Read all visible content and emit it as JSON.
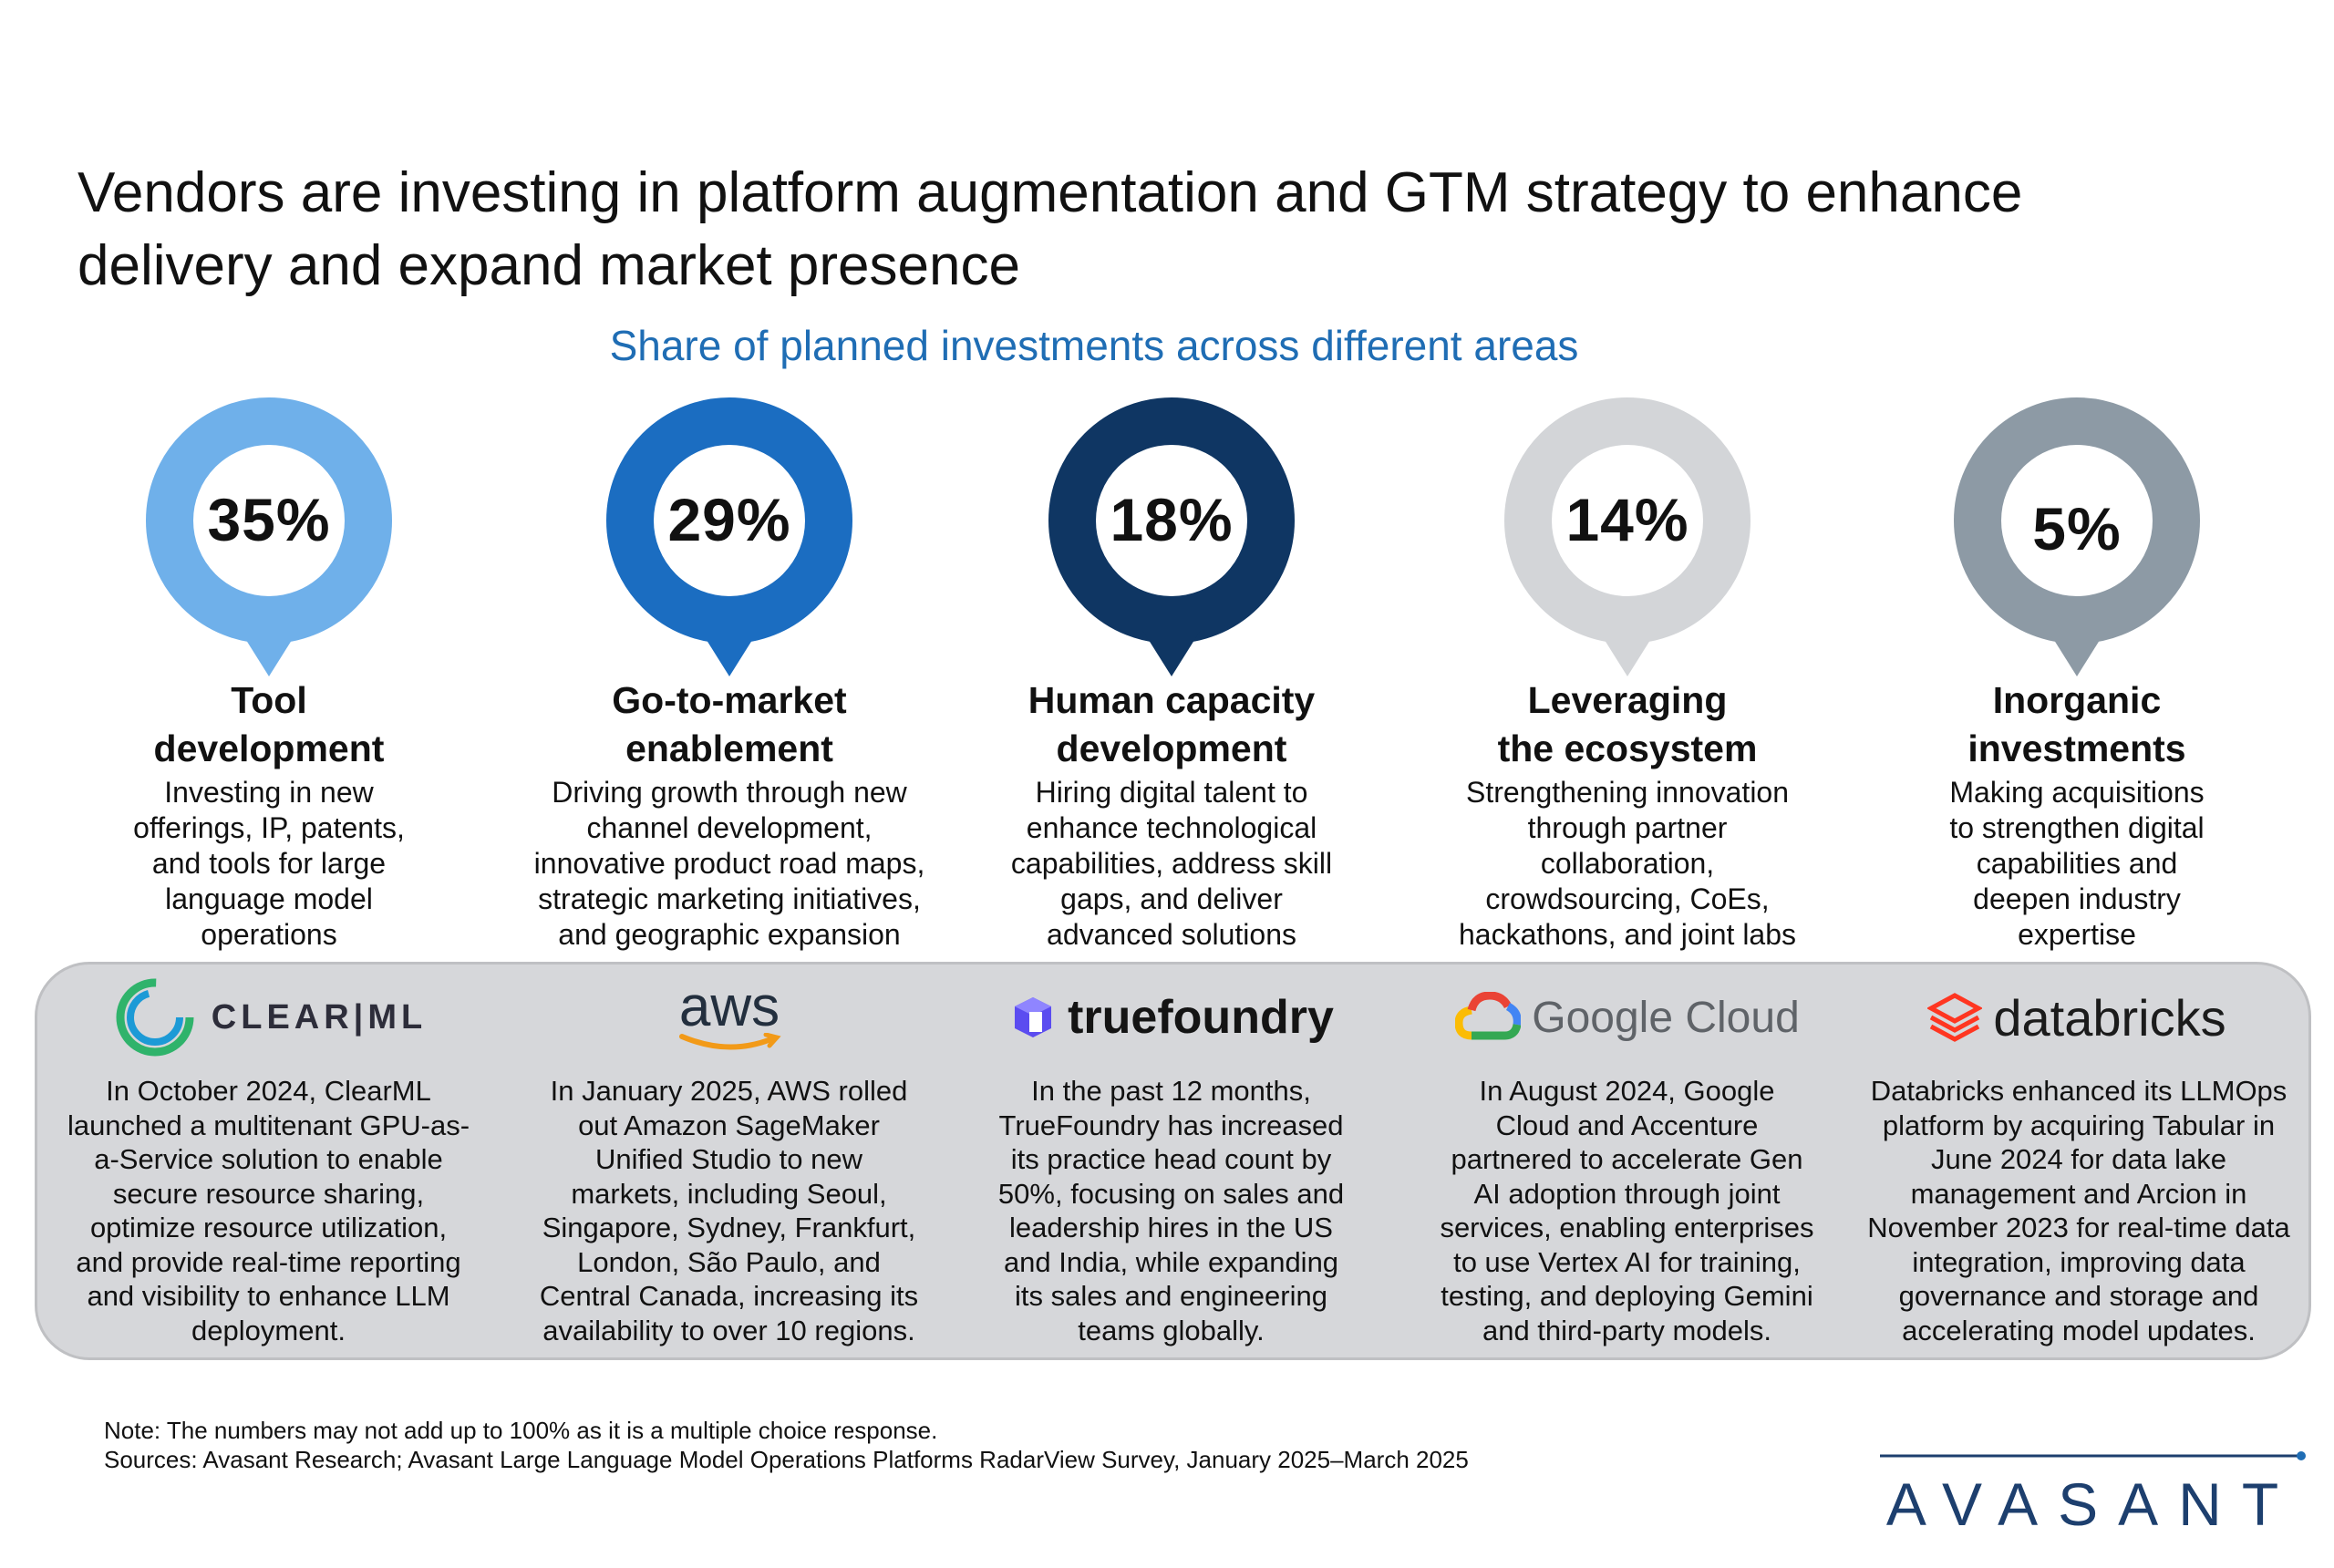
{
  "title_line1": "Vendors are investing in platform augmentation and GTM strategy to enhance",
  "title_line2": "delivery and expand market presence",
  "subtitle": "Share of planned investments across different areas",
  "areas": [
    {
      "percent": "35%",
      "color": "#6fb0ea",
      "heading_line1": "Tool",
      "heading_line2": "development",
      "desc": [
        "Investing in new",
        "offerings, IP, patents,",
        "and tools for large",
        "language model",
        "operations"
      ]
    },
    {
      "percent": "29%",
      "color": "#1b6dc1",
      "heading_line1": "Go-to-market",
      "heading_line2": "enablement",
      "desc": [
        "Driving growth through new",
        "channel development,",
        "innovative product road maps,",
        "strategic marketing initiatives,",
        "and geographic expansion"
      ]
    },
    {
      "percent": "18%",
      "color": "#0f3663",
      "heading_line1": "Human capacity",
      "heading_line2": "development",
      "desc": [
        "Hiring digital talent to",
        "enhance technological",
        "capabilities, address skill",
        "gaps, and deliver",
        "advanced solutions"
      ]
    },
    {
      "percent": "14%",
      "color": "#d3d5d8",
      "heading_line1": "Leveraging",
      "heading_line2": "the ecosystem",
      "desc": [
        "Strengthening innovation",
        "through partner",
        "collaboration,",
        "crowdsourcing, CoEs,",
        "hackathons, and joint labs"
      ]
    },
    {
      "percent": "5%",
      "color": "#8d9aa5",
      "heading_line1": "Inorganic",
      "heading_line2": "investments",
      "desc": [
        "Making acquisitions",
        "to strengthen digital",
        "capabilities and",
        "deepen industry",
        "expertise"
      ]
    }
  ],
  "examples": [
    {
      "logo_text": "CLEAR|ML",
      "text": [
        "In October 2024, ClearML",
        "launched a multitenant GPU-as-",
        "a-Service solution to enable",
        "secure resource sharing,",
        "optimize resource utilization,",
        "and provide real-time reporting",
        "and visibility to enhance LLM",
        "deployment."
      ]
    },
    {
      "logo_text": "aws",
      "text": [
        "In January 2025, AWS rolled",
        "out Amazon SageMaker",
        "Unified Studio to new",
        "markets, including Seoul,",
        "Singapore, Sydney, Frankfurt,",
        "London, São Paulo, and",
        "Central Canada, increasing its",
        "availability to over 10 regions."
      ]
    },
    {
      "logo_text": "truefoundry",
      "text": [
        "In the past 12 months,",
        "TrueFoundry has increased",
        "its practice head count by",
        "50%, focusing on sales and",
        "leadership hires in the US",
        "and India, while expanding",
        "its sales and engineering",
        "teams globally."
      ]
    },
    {
      "logo_text": "Google Cloud",
      "text": [
        "In August 2024, Google",
        "Cloud and Accenture",
        "partnered to accelerate Gen",
        "AI adoption through joint",
        "services, enabling enterprises",
        "to use Vertex AI for training,",
        "testing, and deploying Gemini",
        "and third-party models."
      ]
    },
    {
      "logo_text": "databricks",
      "text": [
        "Databricks enhanced its LLMOps",
        "platform by acquiring Tabular in",
        "June 2024 for data lake",
        "management and Arcion in",
        "November 2023 for real-time data",
        "integration, improving data",
        "governance and storage and",
        "accelerating model updates."
      ]
    }
  ],
  "note": "Note: The numbers may not add up to 100% as it is a multiple choice response.",
  "sources": "Sources: Avasant Research; Avasant Large Language Model Operations Platforms RadarView Survey, January 2025–March 2025",
  "brand": "AVASANT"
}
